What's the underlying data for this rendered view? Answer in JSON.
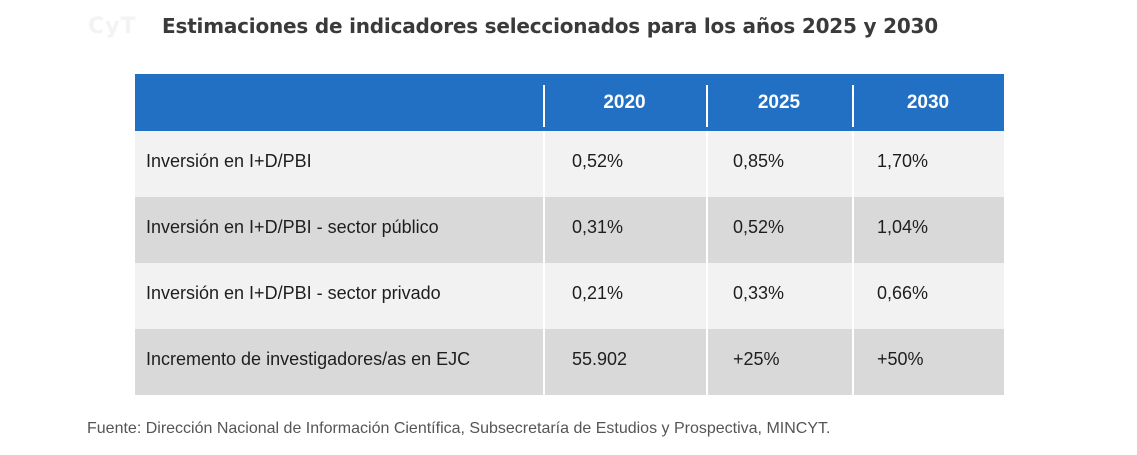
{
  "watermark": "CyT",
  "title": "Estimaciones de indicadores seleccionados para los años 2025 y 2030",
  "table": {
    "headers": [
      "",
      "2020",
      "2025",
      "2030"
    ],
    "rows": [
      {
        "label": "Inversión en I+D/PBI",
        "values": [
          "0,52%",
          "0,85%",
          "1,70%"
        ]
      },
      {
        "label": "Inversión en I+D/PBI - sector público",
        "values": [
          "0,31%",
          "0,52%",
          "1,04%"
        ]
      },
      {
        "label": "Inversión en I+D/PBI - sector privado",
        "values": [
          "0,21%",
          "0,33%",
          "0,66%"
        ]
      },
      {
        "label": "Incremento de investigadores/as en EJC",
        "values": [
          "55.902",
          "+25%",
          "+50%"
        ]
      }
    ]
  },
  "source": "Fuente: Dirección Nacional de Información Científica, Subsecretaría de Estudios y Prospectiva, MINCYT.",
  "colors": {
    "header_bg": "#2270c4",
    "row_light": "#f2f2f2",
    "row_dark": "#d9d9d9"
  }
}
